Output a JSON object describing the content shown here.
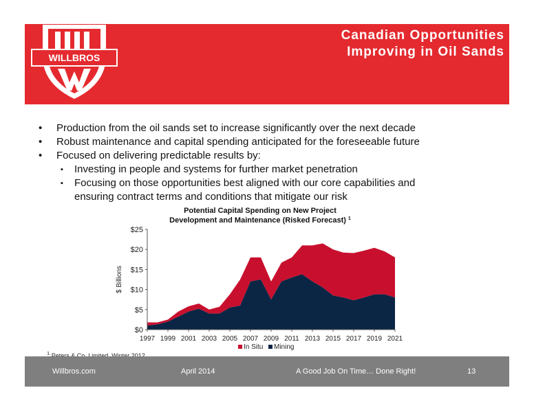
{
  "header": {
    "title_line1": "Canadian Opportunities",
    "title_line2": "Improving in Oil Sands",
    "logo_text": "WILLBROS",
    "colors": {
      "brand_red": "#e42a2f",
      "footer_gray": "#7f7f7f"
    }
  },
  "bullets": [
    {
      "text": "Production from the oil sands set to increase significantly over the next decade"
    },
    {
      "text": "Robust maintenance and capital spending anticipated for the foreseeable future"
    },
    {
      "text": "Focused on delivering predictable results by:"
    }
  ],
  "sub_bullets": [
    {
      "text": "Investing in people and systems for further market penetration"
    },
    {
      "text": "Focusing on those opportunities best aligned with our core capabilities and"
    },
    {
      "text": "ensuring contract terms and conditions that mitigate our risk"
    }
  ],
  "chart_data": {
    "type": "area",
    "stacked": true,
    "title": "Potential Capital Spending on New Project",
    "title_line2": "Development and Maintenance (Risked Forecast)",
    "title_footnote_mark": "1",
    "ylabel": "$ Billions",
    "xlabel": "",
    "ylim": [
      0,
      25
    ],
    "yticks": [
      "$0",
      "$5",
      "$10",
      "$15",
      "$20",
      "$25"
    ],
    "x": [
      1997,
      1998,
      1999,
      2000,
      2001,
      2002,
      2003,
      2004,
      2005,
      2006,
      2007,
      2008,
      2009,
      2010,
      2011,
      2012,
      2013,
      2014,
      2015,
      2016,
      2017,
      2018,
      2019,
      2020,
      2021
    ],
    "xtick_labels": [
      "1997",
      "1999",
      "2001",
      "2003",
      "2005",
      "2007",
      "2009",
      "2011",
      "2013",
      "2015",
      "2017",
      "2019",
      "2021"
    ],
    "grid": false,
    "legend_position": "bottom",
    "series": [
      {
        "name": "Mining",
        "color": "#0b2545",
        "values": [
          1.0,
          1.3,
          2.0,
          3.2,
          4.5,
          5.2,
          4.0,
          4.0,
          5.5,
          6.0,
          12.0,
          12.5,
          7.5,
          12.0,
          13.0,
          13.8,
          12.0,
          10.5,
          8.5,
          8.0,
          7.3,
          8.0,
          8.8,
          8.8,
          8.0
        ]
      },
      {
        "name": "In Situ",
        "color": "#c8102e",
        "values": [
          0.8,
          0.5,
          0.5,
          1.3,
          1.3,
          1.3,
          1.0,
          1.7,
          3.3,
          6.5,
          6.0,
          5.5,
          4.5,
          4.7,
          5.0,
          7.2,
          9.0,
          11.0,
          11.5,
          11.2,
          11.8,
          11.7,
          11.6,
          10.7,
          10.0
        ]
      }
    ]
  },
  "footnote": {
    "mark": "1",
    "text": "Peters & Co. Limited, Winter 2012"
  },
  "footer": {
    "company": "Willbros.com",
    "date": "April 2014",
    "tagline": "A Good Job On Time… Done Right!",
    "page": "13"
  }
}
